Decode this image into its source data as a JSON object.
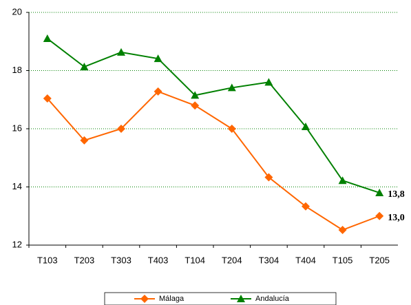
{
  "chart_data": {
    "type": "line",
    "categories": [
      "T103",
      "T203",
      "T303",
      "T403",
      "T104",
      "T204",
      "T304",
      "T404",
      "T105",
      "T205"
    ],
    "series": [
      {
        "name": "Málaga",
        "color": "#ff6600",
        "marker": "diamond",
        "values": [
          17.04,
          15.6,
          16.0,
          17.28,
          16.8,
          16.0,
          14.33,
          13.33,
          12.52,
          13.0
        ],
        "value_labels": [
          null,
          null,
          null,
          null,
          null,
          null,
          null,
          null,
          null,
          "13,0"
        ]
      },
      {
        "name": "Andalucía",
        "color": "#008000",
        "marker": "triangle",
        "values": [
          19.1,
          18.13,
          18.63,
          18.41,
          17.15,
          17.41,
          17.6,
          16.07,
          14.22,
          13.8
        ],
        "value_labels": [
          null,
          null,
          null,
          null,
          null,
          null,
          null,
          null,
          null,
          "13,8"
        ]
      }
    ],
    "ylim": [
      12,
      20
    ],
    "yticks": [
      12,
      14,
      16,
      18,
      20
    ],
    "grid": true
  }
}
